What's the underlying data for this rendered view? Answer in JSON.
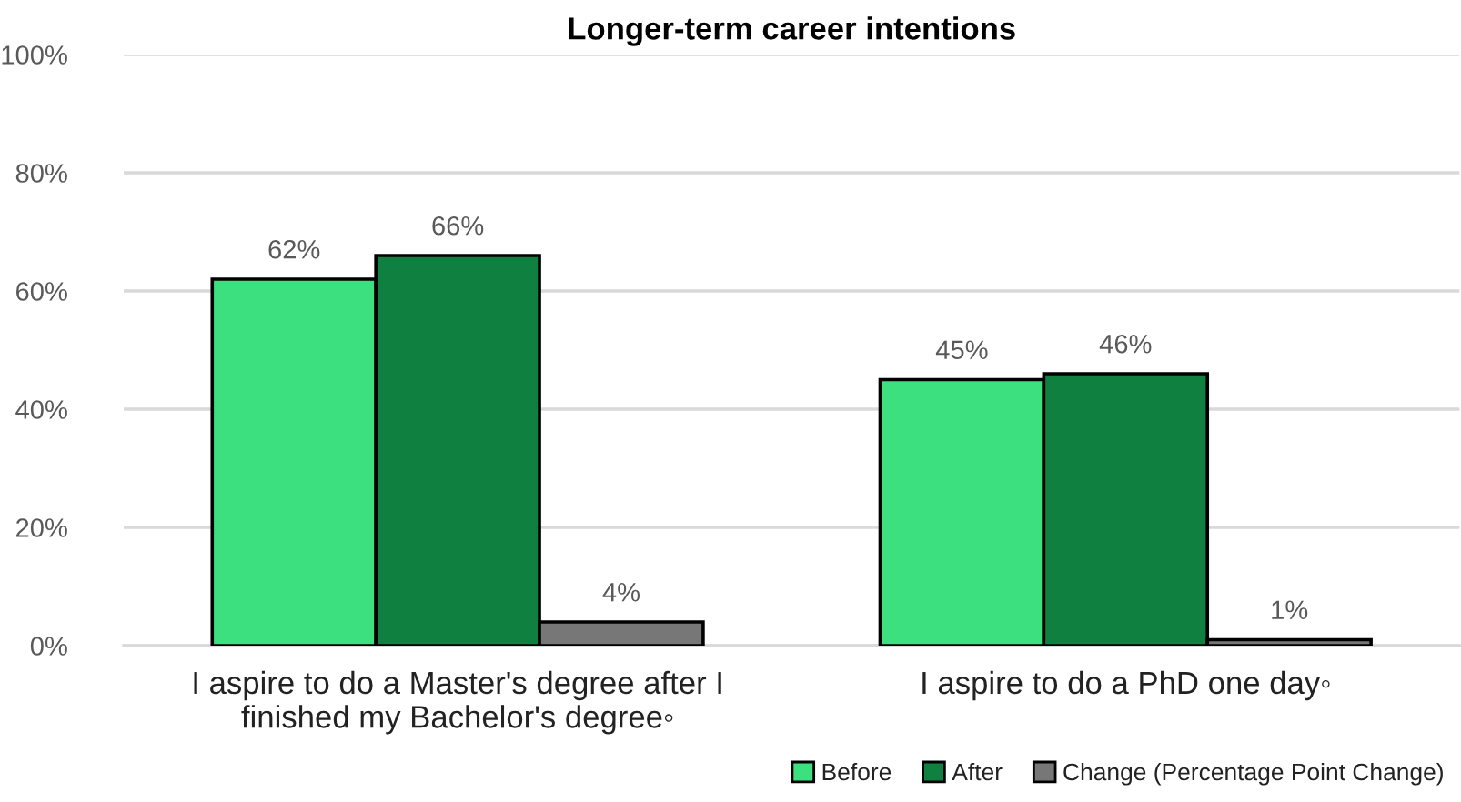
{
  "chart_data": {
    "type": "bar",
    "title": "Longer-term career intentions",
    "categories": [
      "I aspire to do a Master's degree after I\nfinished my Bachelor's degree◦",
      "I aspire to do a PhD one day◦"
    ],
    "series": [
      {
        "name": "Before",
        "color": "#3ce07e",
        "values": [
          62,
          45
        ],
        "value_labels": [
          "62%",
          "45%"
        ]
      },
      {
        "name": "After",
        "color": "#108040",
        "values": [
          66,
          46
        ],
        "value_labels": [
          "66%",
          "46%"
        ]
      },
      {
        "name": "Change (Percentage Point Change)",
        "color": "#777777",
        "values": [
          4,
          1
        ],
        "value_labels": [
          "4%",
          "1%"
        ]
      }
    ],
    "ylim": [
      0,
      100
    ],
    "yticks": [
      {
        "value": 0,
        "label": "0%"
      },
      {
        "value": 20,
        "label": "20%"
      },
      {
        "value": 40,
        "label": "40%"
      },
      {
        "value": 60,
        "label": "60%"
      },
      {
        "value": 80,
        "label": "80%"
      },
      {
        "value": 100,
        "label": "100%"
      }
    ],
    "grid": "y",
    "legend": "bottom right"
  }
}
